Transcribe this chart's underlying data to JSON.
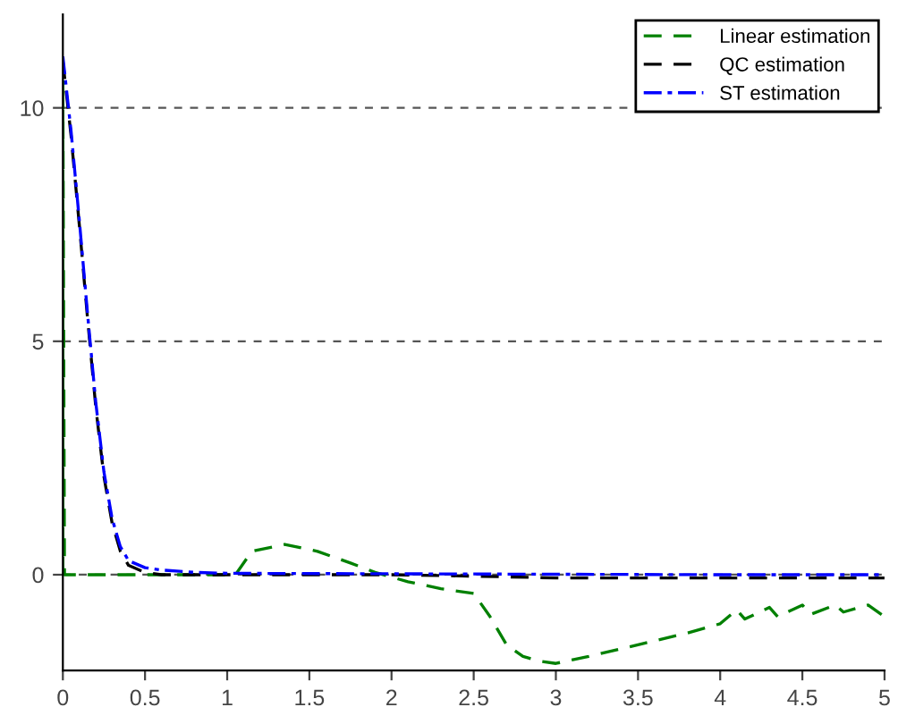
{
  "chart_data": {
    "type": "line",
    "xlim": [
      0,
      5
    ],
    "ylim": [
      -2.05,
      12
    ],
    "xticks": [
      0,
      0.5,
      1,
      1.5,
      2,
      2.5,
      3,
      3.5,
      4,
      4.5,
      5
    ],
    "yticks": [
      0,
      5,
      10
    ],
    "grid": "y",
    "legend": "top right",
    "marker": "none",
    "series": [
      {
        "name": "Linear estimation",
        "color": "#008000",
        "line_style": "dashed",
        "x": [
          0,
          0,
          0.01,
          1.05,
          1.15,
          1.35,
          1.55,
          1.75,
          1.9,
          2.1,
          2.3,
          2.5,
          2.6,
          2.7,
          2.8,
          2.9,
          3.0,
          3.2,
          3.5,
          3.8,
          4.0,
          4.1,
          4.15,
          4.3,
          4.35,
          4.5,
          4.55,
          4.7,
          4.75,
          4.9,
          5.0
        ],
        "values": [
          0,
          10.6,
          0,
          0,
          0.5,
          0.65,
          0.5,
          0.25,
          0.05,
          -0.15,
          -0.3,
          -0.4,
          -0.9,
          -1.5,
          -1.75,
          -1.85,
          -1.9,
          -1.75,
          -1.5,
          -1.25,
          -1.05,
          -0.75,
          -0.95,
          -0.7,
          -0.9,
          -0.65,
          -0.85,
          -0.65,
          -0.8,
          -0.65,
          -0.9
        ]
      },
      {
        "name": "QC estimation",
        "color": "#000000",
        "line_style": "dashed",
        "x": [
          0,
          0.05,
          0.1,
          0.15,
          0.2,
          0.25,
          0.3,
          0.35,
          0.4,
          0.5,
          0.6,
          1,
          2,
          2.5,
          3,
          4,
          5
        ],
        "values": [
          11,
          9.4,
          7.5,
          5.5,
          3.6,
          2.1,
          1.1,
          0.5,
          0.2,
          0.05,
          0,
          0,
          0,
          -0.03,
          -0.07,
          -0.07,
          -0.07
        ]
      },
      {
        "name": "ST estimation",
        "color": "#0000ff",
        "line_style": "dashdot",
        "x": [
          0,
          0.05,
          0.1,
          0.15,
          0.2,
          0.25,
          0.3,
          0.35,
          0.4,
          0.5,
          0.6,
          0.8,
          1,
          2,
          3,
          4,
          5
        ],
        "values": [
          11.1,
          9.5,
          7.6,
          5.6,
          3.7,
          2.2,
          1.2,
          0.6,
          0.3,
          0.15,
          0.1,
          0.05,
          0.03,
          0.02,
          0.01,
          0,
          0
        ]
      }
    ]
  }
}
